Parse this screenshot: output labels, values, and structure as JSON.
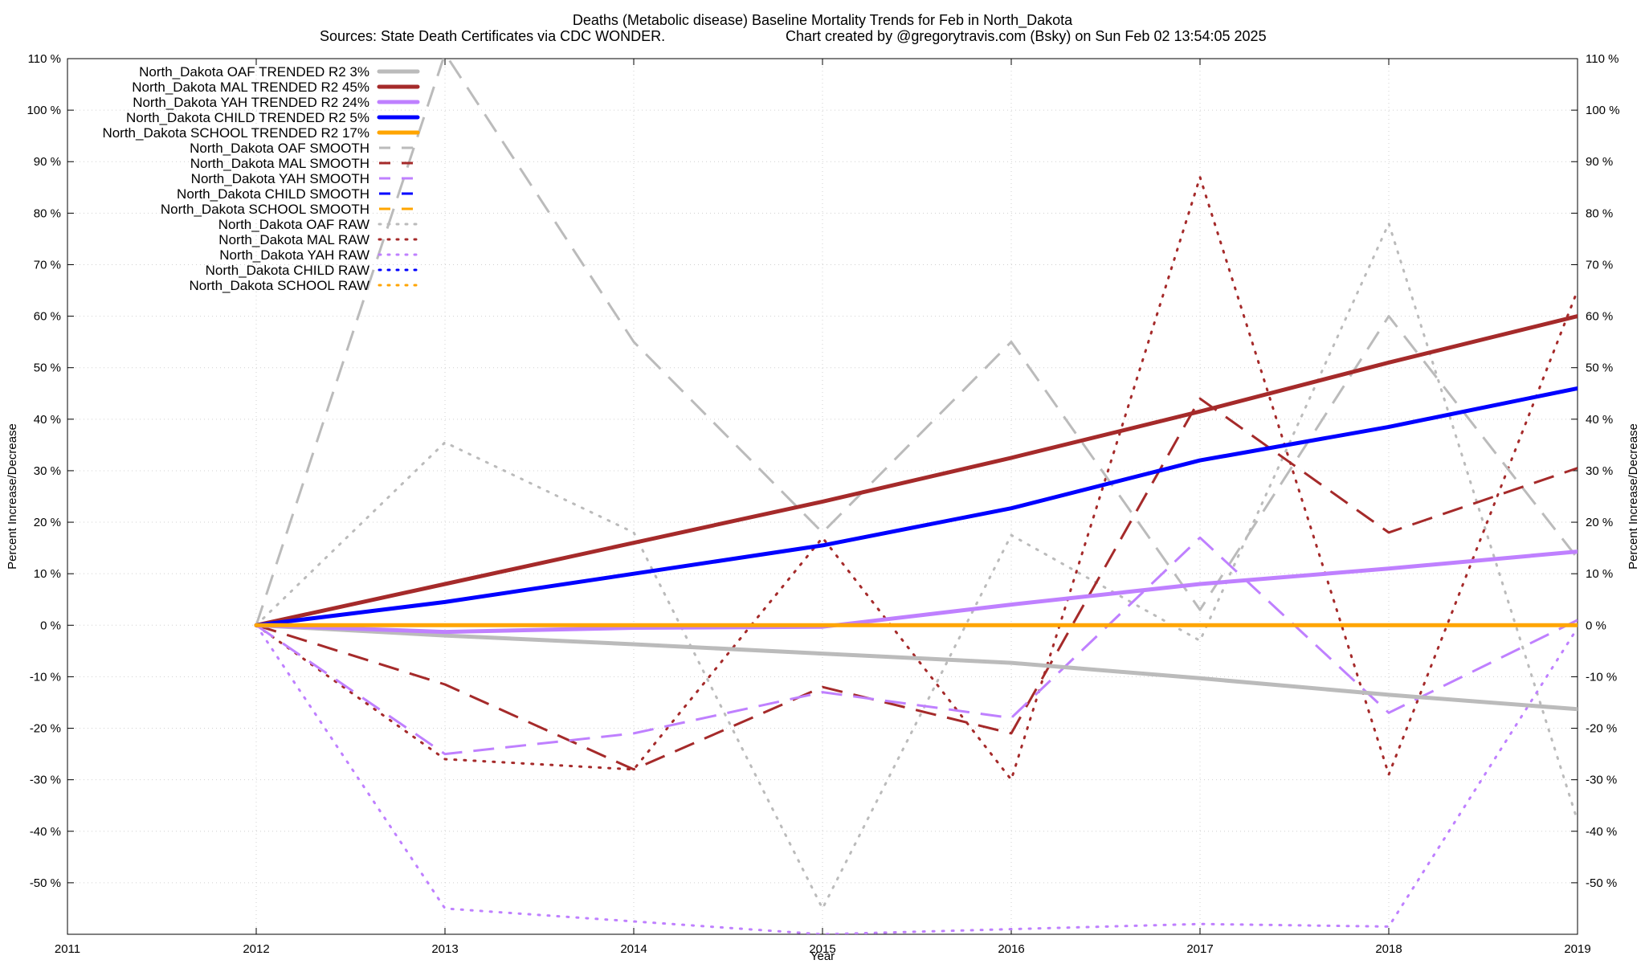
{
  "chart_data": {
    "type": "line",
    "title": "Deaths (Metabolic disease)  Baseline Mortality Trends for Feb in North_Dakota",
    "subtitle_left": "Sources: State Death Certificates via CDC WONDER.",
    "subtitle_right": "Chart created by @gregorytravis.com (Bsky) on Sun Feb 02 13:54:05 2025",
    "xlabel": "Year",
    "ylabel": "Percent Increase/Decrease",
    "xlim": [
      2011,
      2019
    ],
    "ylim": [
      -60,
      110
    ],
    "x_ticks": [
      {
        "value": 2011,
        "label": "2011"
      },
      {
        "value": 2012,
        "label": "2012"
      },
      {
        "value": 2013,
        "label": "2013"
      },
      {
        "value": 2014,
        "label": "2014"
      },
      {
        "value": 2015,
        "label": "2015"
      },
      {
        "value": 2016,
        "label": "2016"
      },
      {
        "value": 2017,
        "label": "2017"
      },
      {
        "value": 2018,
        "label": "2018"
      },
      {
        "value": 2019,
        "label": "2019"
      }
    ],
    "y_ticks": [
      {
        "value": 110,
        "label": "110 %"
      },
      {
        "value": 100,
        "label": "100 %"
      },
      {
        "value": 90,
        "label": "90 %"
      },
      {
        "value": 80,
        "label": "80 %"
      },
      {
        "value": 70,
        "label": "70 %"
      },
      {
        "value": 60,
        "label": "60 %"
      },
      {
        "value": 50,
        "label": "50 %"
      },
      {
        "value": 40,
        "label": "40 %"
      },
      {
        "value": 30,
        "label": "30 %"
      },
      {
        "value": 20,
        "label": "20 %"
      },
      {
        "value": 10,
        "label": "10 %"
      },
      {
        "value": 0,
        "label": "0 %"
      },
      {
        "value": -10,
        "label": "-10 %"
      },
      {
        "value": -20,
        "label": "-20 %"
      },
      {
        "value": -30,
        "label": "-30 %"
      },
      {
        "value": -40,
        "label": "-40 %"
      },
      {
        "value": -50,
        "label": "-50 %"
      }
    ],
    "grid": true,
    "legend_position": "top-left",
    "colors": {
      "OAF": "#bbbbbb",
      "MAL": "#a52a2a",
      "YAH": "#bf80ff",
      "CHILD": "#0000ff",
      "SCHOOL": "#ffa500"
    },
    "series": [
      {
        "name": "North_Dakota OAF TRENDED R2  3%",
        "group": "OAF",
        "style": "trended",
        "x": [
          2012,
          2013,
          2014,
          2015,
          2016,
          2017,
          2018,
          2019
        ],
        "y": [
          0,
          -2,
          -3.7,
          -5.5,
          -7.3,
          -10.3,
          -13.5,
          -16.3
        ]
      },
      {
        "name": "North_Dakota MAL TRENDED R2  45%",
        "group": "MAL",
        "style": "trended",
        "x": [
          2012,
          2013,
          2014,
          2015,
          2016,
          2017,
          2018,
          2019
        ],
        "y": [
          0,
          8,
          16,
          24,
          32.5,
          41.5,
          51,
          60
        ]
      },
      {
        "name": "North_Dakota YAH TRENDED R2  24%",
        "group": "YAH",
        "style": "trended",
        "x": [
          2012,
          2013,
          2014,
          2015,
          2016,
          2017,
          2018,
          2019
        ],
        "y": [
          0,
          -1.3,
          -0.5,
          -0.3,
          4,
          8,
          11,
          14.3
        ]
      },
      {
        "name": "North_Dakota CHILD TRENDED R2  5%",
        "group": "CHILD",
        "style": "trended",
        "x": [
          2012,
          2013,
          2014,
          2015,
          2016,
          2017,
          2018,
          2019
        ],
        "y": [
          0,
          4.5,
          10,
          15.5,
          22.7,
          32,
          38.5,
          46
        ]
      },
      {
        "name": "North_Dakota SCHOOL TRENDED R2  17%",
        "group": "SCHOOL",
        "style": "trended",
        "x": [
          2012,
          2013,
          2014,
          2015,
          2016,
          2017,
          2018,
          2019
        ],
        "y": [
          0,
          0,
          0,
          0,
          0,
          0,
          0,
          0
        ]
      },
      {
        "name": "North_Dakota OAF SMOOTH",
        "group": "OAF",
        "style": "smooth",
        "x": [
          2012,
          2013,
          2014,
          2015,
          2016,
          2017,
          2018,
          2019
        ],
        "y": [
          0,
          111,
          55,
          18,
          55,
          3,
          60,
          13
        ]
      },
      {
        "name": "North_Dakota MAL SMOOTH",
        "group": "MAL",
        "style": "smooth",
        "x": [
          2012,
          2013,
          2014,
          2015,
          2016,
          2017,
          2018,
          2019
        ],
        "y": [
          0,
          -11.5,
          -28,
          -12,
          -21,
          44,
          18,
          30.5
        ]
      },
      {
        "name": "North_Dakota YAH SMOOTH",
        "group": "YAH",
        "style": "smooth",
        "x": [
          2012,
          2013,
          2014,
          2015,
          2016,
          2017,
          2018,
          2019
        ],
        "y": [
          0,
          -25,
          -21,
          -13,
          -18,
          17,
          -17,
          1
        ]
      },
      {
        "name": "North_Dakota CHILD SMOOTH",
        "group": "CHILD",
        "style": "smooth",
        "x": [],
        "y": []
      },
      {
        "name": "North_Dakota SCHOOL SMOOTH",
        "group": "SCHOOL",
        "style": "smooth",
        "x": [],
        "y": []
      },
      {
        "name": "North_Dakota OAF RAW",
        "group": "OAF",
        "style": "raw",
        "x": [
          2012,
          2013,
          2014,
          2015,
          2016,
          2017,
          2018,
          2019
        ],
        "y": [
          0,
          35.5,
          18,
          -55,
          17.5,
          -3,
          78,
          -38
        ]
      },
      {
        "name": "North_Dakota MAL RAW",
        "group": "MAL",
        "style": "raw",
        "x": [
          2012,
          2013,
          2014,
          2015,
          2016,
          2017,
          2018,
          2019
        ],
        "y": [
          0,
          -26,
          -28,
          17,
          -30,
          87,
          -29,
          65
        ]
      },
      {
        "name": "North_Dakota YAH RAW",
        "group": "YAH",
        "style": "raw",
        "x": [
          2012,
          2013,
          2014,
          2015,
          2016,
          2017,
          2018,
          2019
        ],
        "y": [
          0,
          -55,
          -57.5,
          -60,
          -59,
          -58,
          -58.5,
          -0.5
        ]
      },
      {
        "name": "North_Dakota CHILD RAW",
        "group": "CHILD",
        "style": "raw",
        "x": [],
        "y": []
      },
      {
        "name": "North_Dakota SCHOOL RAW",
        "group": "SCHOOL",
        "style": "raw",
        "x": [],
        "y": []
      }
    ]
  }
}
